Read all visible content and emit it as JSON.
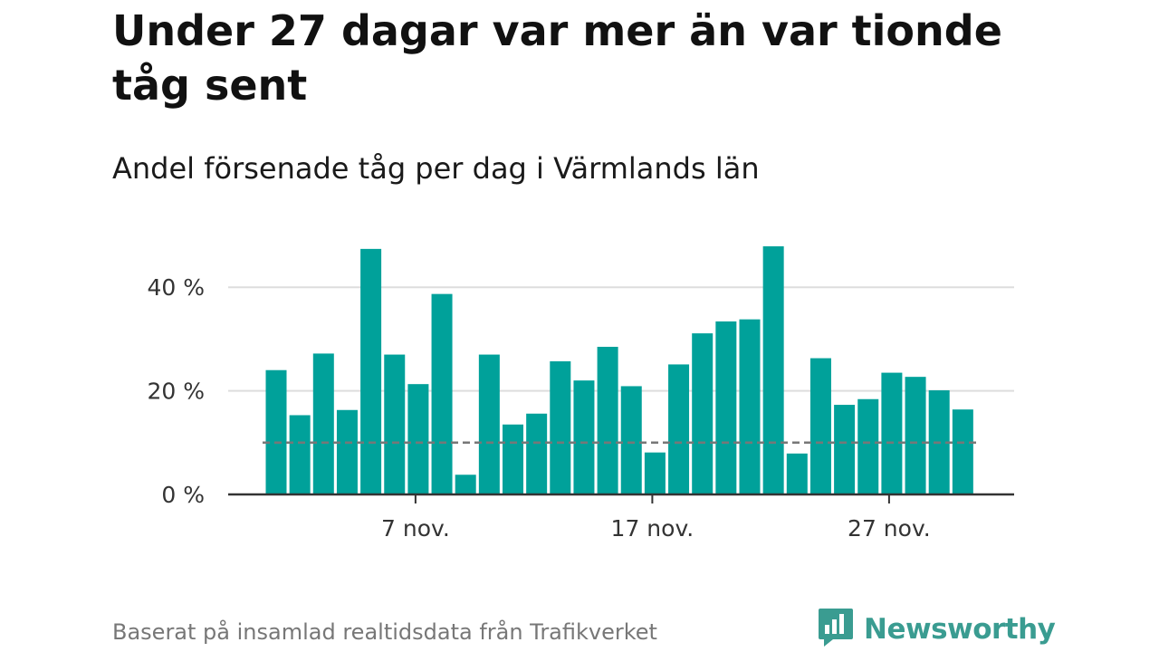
{
  "header": {
    "title": "Under 27 dagar var mer än var tionde tåg sent",
    "subtitle": "Andel försenade tåg per dag i Värmlands län"
  },
  "footer": {
    "source": "Baserat på insamlad realtidsdata från Trafikverket",
    "brand": "Newsworthy"
  },
  "colors": {
    "bar": "#00a19a",
    "reference_line": "#777777",
    "grid": "#dddddd",
    "axis": "#333333",
    "brand": "#3a9c91"
  },
  "icons": {
    "brand_logo": "newsworthy-logo-icon"
  },
  "chart_data": {
    "type": "bar",
    "xlabel": "",
    "ylabel": "",
    "x": [
      "1 nov.",
      "2 nov.",
      "3 nov.",
      "4 nov.",
      "5 nov.",
      "6 nov.",
      "7 nov.",
      "8 nov.",
      "9 nov.",
      "10 nov.",
      "11 nov.",
      "12 nov.",
      "13 nov.",
      "14 nov.",
      "15 nov.",
      "16 nov.",
      "17 nov.",
      "18 nov.",
      "19 nov.",
      "20 nov.",
      "21 nov.",
      "22 nov.",
      "23 nov.",
      "24 nov.",
      "25 nov.",
      "26 nov.",
      "27 nov.",
      "28 nov.",
      "29 nov.",
      "30 nov."
    ],
    "values": [
      24,
      15.3,
      27.2,
      16.3,
      47.4,
      27,
      21.3,
      38.7,
      3.8,
      27,
      13.5,
      15.6,
      25.7,
      22,
      28.5,
      20.9,
      8.1,
      25.1,
      31.1,
      33.4,
      33.8,
      47.9,
      7.9,
      26.3,
      17.3,
      18.4,
      23.5,
      22.7,
      20.1,
      16.4
    ],
    "ylim": [
      0,
      50
    ],
    "y_ticks": [
      0,
      20,
      40
    ],
    "y_tick_labels": [
      "0 %",
      "20 %",
      "40 %"
    ],
    "x_ticks": [
      {
        "index": 6,
        "label": "7 nov."
      },
      {
        "index": 16,
        "label": "17 nov."
      },
      {
        "index": 26,
        "label": "27 nov."
      }
    ],
    "reference_line": 10,
    "grid": true
  }
}
